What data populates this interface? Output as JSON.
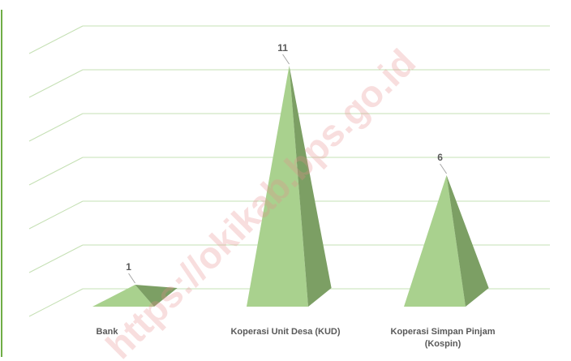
{
  "chart_data": {
    "type": "bar",
    "shape": "pyramid-3d",
    "categories": [
      "Bank",
      "Koperasi Unit Desa (KUD)",
      "Koperasi Simpan Pinjam (Kospin)"
    ],
    "category_lines": [
      [
        "Bank"
      ],
      [
        "Koperasi Unit Desa (KUD)"
      ],
      [
        "Koperasi Simpan Pinjam",
        "(Kospin)"
      ]
    ],
    "values": [
      1,
      11,
      6
    ],
    "data_labels": [
      "1",
      "11",
      "6"
    ],
    "ylim": [
      0,
      12
    ],
    "grid": true,
    "legend": "none",
    "title": "",
    "xlabel": "",
    "ylabel": ""
  },
  "watermark": "https://okikab.bps.go.id",
  "colors": {
    "face_front": "#a9d18e",
    "face_side": "#7c9f64",
    "gridline": "#c5e0b4",
    "axis": "#70ad47",
    "label": "#595959"
  }
}
